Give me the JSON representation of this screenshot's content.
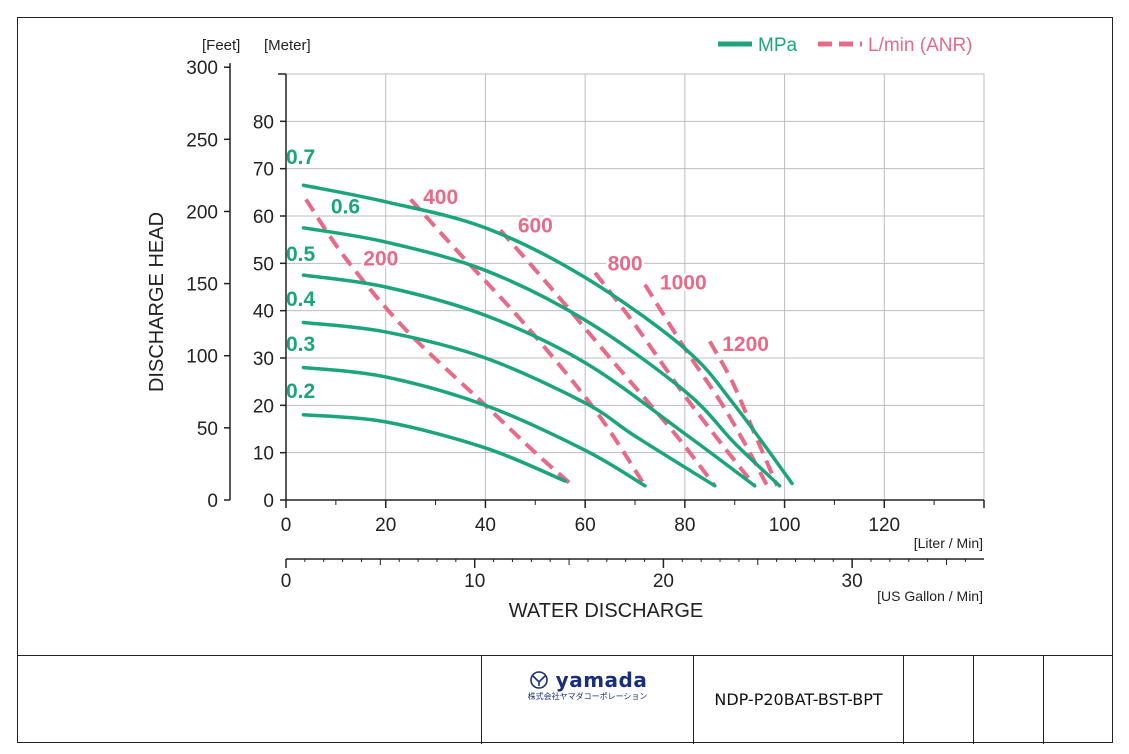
{
  "chart_data": {
    "type": "line",
    "title": "",
    "ylabel": "DISCHARGE HEAD",
    "xlabel": "WATER DISCHARGE",
    "y_units": {
      "feet": "[Feet]",
      "meter": "[Meter]"
    },
    "x_units": {
      "liter": "[Liter / Min]",
      "gallon": "[US Gallon / Min]"
    },
    "xlim": [
      0,
      140
    ],
    "ylim": [
      0,
      90
    ],
    "x_ticks_liter": [
      0,
      20,
      40,
      60,
      80,
      100,
      120
    ],
    "x_ticks_gallon": [
      0,
      10,
      20,
      30
    ],
    "y_ticks_meter": [
      0,
      10,
      20,
      30,
      40,
      50,
      60,
      70,
      80
    ],
    "y_ticks_feet": [
      0,
      50,
      100,
      150,
      200,
      250,
      300
    ],
    "legend": {
      "position": "top-right",
      "mpa_label": "MPa",
      "air_label": "L/min (ANR)"
    },
    "colors": {
      "mpa": "#1aa57b",
      "air": "#e86a86",
      "grid": "#bdbdbd",
      "axis": "#222222"
    },
    "series_mpa": [
      {
        "name": "0.7",
        "points": [
          [
            3.5,
            66.5
          ],
          [
            20,
            63
          ],
          [
            40,
            57.5
          ],
          [
            60,
            47
          ],
          [
            80,
            32
          ],
          [
            90,
            20
          ],
          [
            101.5,
            3.5
          ]
        ]
      },
      {
        "name": "0.6",
        "points": [
          [
            3.5,
            57.5
          ],
          [
            20,
            54.5
          ],
          [
            40,
            48.5
          ],
          [
            60,
            38
          ],
          [
            80,
            23
          ],
          [
            90,
            12
          ],
          [
            99,
            3
          ]
        ]
      },
      {
        "name": "0.5",
        "points": [
          [
            3.5,
            47.5
          ],
          [
            20,
            45
          ],
          [
            40,
            39
          ],
          [
            60,
            29
          ],
          [
            80,
            14
          ],
          [
            94,
            3
          ]
        ]
      },
      {
        "name": "0.4",
        "points": [
          [
            3.5,
            37.5
          ],
          [
            20,
            35.5
          ],
          [
            40,
            30
          ],
          [
            60,
            20.5
          ],
          [
            70,
            13.5
          ],
          [
            86,
            3
          ]
        ]
      },
      {
        "name": "0.3",
        "points": [
          [
            3.5,
            28
          ],
          [
            20,
            26
          ],
          [
            40,
            20
          ],
          [
            60,
            10.5
          ],
          [
            72,
            3
          ]
        ]
      },
      {
        "name": "0.2",
        "points": [
          [
            3.5,
            18
          ],
          [
            20,
            16.5
          ],
          [
            40,
            11
          ],
          [
            56,
            4
          ]
        ]
      }
    ],
    "series_air": [
      {
        "name": "200",
        "points": [
          [
            4,
            63.5
          ],
          [
            12,
            51
          ],
          [
            24,
            36
          ],
          [
            40,
            20
          ],
          [
            50,
            10
          ],
          [
            57,
            3.5
          ]
        ]
      },
      {
        "name": "400",
        "points": [
          [
            25,
            63.5
          ],
          [
            34,
            53
          ],
          [
            48,
            37
          ],
          [
            62,
            19
          ],
          [
            72,
            3
          ]
        ]
      },
      {
        "name": "600",
        "points": [
          [
            43,
            57
          ],
          [
            53,
            45
          ],
          [
            65,
            30
          ],
          [
            78,
            14
          ],
          [
            86,
            3
          ]
        ]
      },
      {
        "name": "800",
        "points": [
          [
            62,
            48
          ],
          [
            70,
            37
          ],
          [
            80,
            22
          ],
          [
            88,
            11
          ],
          [
            94,
            3
          ]
        ]
      },
      {
        "name": "1000",
        "points": [
          [
            72,
            45.5
          ],
          [
            80,
            32
          ],
          [
            87,
            21
          ],
          [
            92,
            12
          ],
          [
            96.5,
            3
          ]
        ]
      },
      {
        "name": "1200",
        "points": [
          [
            85,
            33.5
          ],
          [
            89.5,
            25
          ],
          [
            94,
            14
          ],
          [
            98.5,
            3
          ]
        ]
      }
    ],
    "mpa_labels": [
      {
        "text": "0.7",
        "x": 0,
        "y": 71
      },
      {
        "text": "0.6",
        "x": 9,
        "y": 60.5
      },
      {
        "text": "0.5",
        "x": 0,
        "y": 50.5
      },
      {
        "text": "0.4",
        "x": 0,
        "y": 41
      },
      {
        "text": "0.3",
        "x": 0,
        "y": 31.5
      },
      {
        "text": "0.2",
        "x": 0,
        "y": 21.5
      }
    ],
    "air_labels": [
      {
        "text": "200",
        "x": 15.5,
        "y": 49.5
      },
      {
        "text": "400",
        "x": 27.5,
        "y": 62.5
      },
      {
        "text": "600",
        "x": 46.5,
        "y": 56.5
      },
      {
        "text": "800",
        "x": 64.5,
        "y": 48.5
      },
      {
        "text": "1000",
        "x": 75,
        "y": 44.5
      },
      {
        "text": "1200",
        "x": 87.5,
        "y": 31.5
      }
    ]
  },
  "footer": {
    "logo_text": "yamada",
    "logo_subtitle": "株式会社ヤマダコーポレーション",
    "part_code": "NDP-P20BAT-BST-BPT"
  }
}
